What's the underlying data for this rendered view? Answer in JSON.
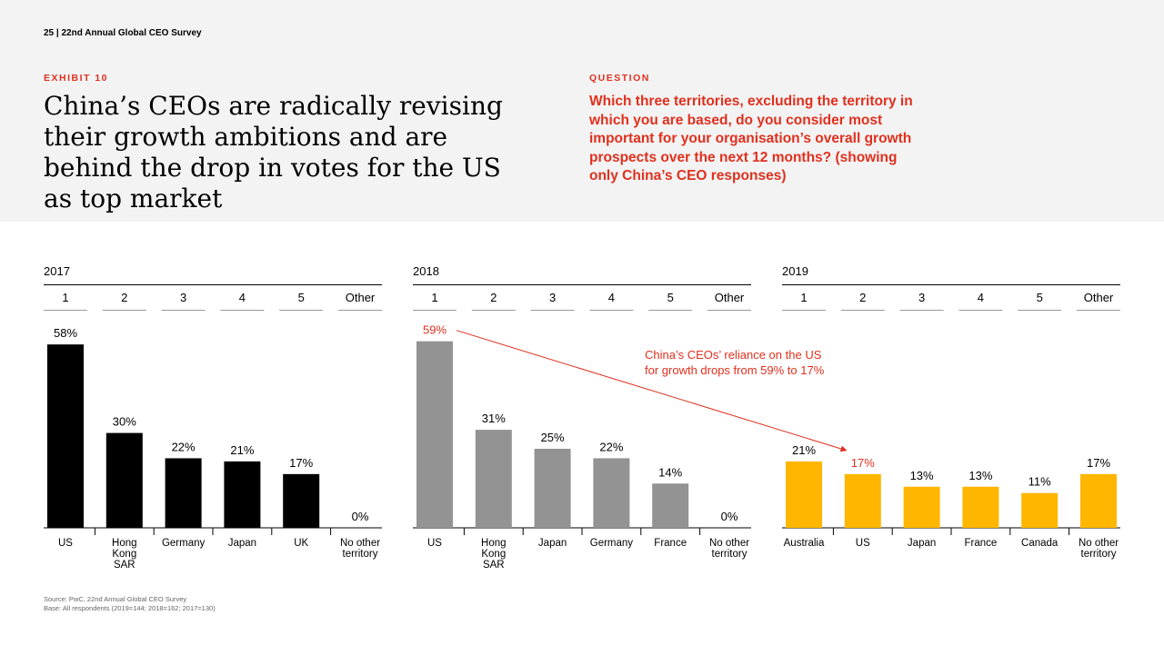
{
  "header": {
    "page_number": "25  |  22nd Annual Global CEO Survey",
    "exhibit_label": "EXHIBIT 10",
    "title": "China’s CEOs are radically revising their growth ambitions and are behind the drop in votes for the US as top market",
    "question_label": "QUESTION",
    "question_text": "Which three territories, excluding the territory in which you are based, do you consider most important for your organisation’s overall growth prospects over the next 12 months? (showing only China’s CEO responses)"
  },
  "chart_data": [
    {
      "type": "bar",
      "title": "2017",
      "ranks": [
        "1",
        "2",
        "3",
        "4",
        "5",
        "Other"
      ],
      "categories": [
        "US",
        "Hong Kong SAR",
        "Germany",
        "Japan",
        "UK",
        "No other territory"
      ],
      "values": [
        58,
        30,
        22,
        21,
        17,
        0
      ],
      "labels": [
        "58%",
        "30%",
        "22%",
        "21%",
        "17%",
        "0%"
      ],
      "color": "#000000"
    },
    {
      "type": "bar",
      "title": "2018",
      "ranks": [
        "1",
        "2",
        "3",
        "4",
        "5",
        "Other"
      ],
      "categories": [
        "US",
        "Hong Kong SAR",
        "Japan",
        "Germany",
        "France",
        "No other territory"
      ],
      "values": [
        59,
        31,
        25,
        22,
        14,
        0
      ],
      "labels": [
        "59%",
        "31%",
        "25%",
        "22%",
        "14%",
        "0%"
      ],
      "color": "#939393"
    },
    {
      "type": "bar",
      "title": "2019",
      "ranks": [
        "1",
        "2",
        "3",
        "4",
        "5",
        "Other"
      ],
      "categories": [
        "Australia",
        "US",
        "Japan",
        "France",
        "Canada",
        "No other territory"
      ],
      "values": [
        21,
        17,
        13,
        13,
        11,
        17
      ],
      "labels": [
        "21%",
        "17%",
        "13%",
        "13%",
        "11%",
        "17%"
      ],
      "color": "#ffb600"
    }
  ],
  "annotation": {
    "line1": "China’s CEOs’ reliance on the US",
    "line2": "for growth drops from 59% to 17%",
    "color": "#e0301e"
  },
  "source": {
    "line1": "Source: PwC, 22nd Annual Global CEO Survey",
    "line2": "Base: All respondents (2019=144; 2018=162; 2017=130)"
  }
}
